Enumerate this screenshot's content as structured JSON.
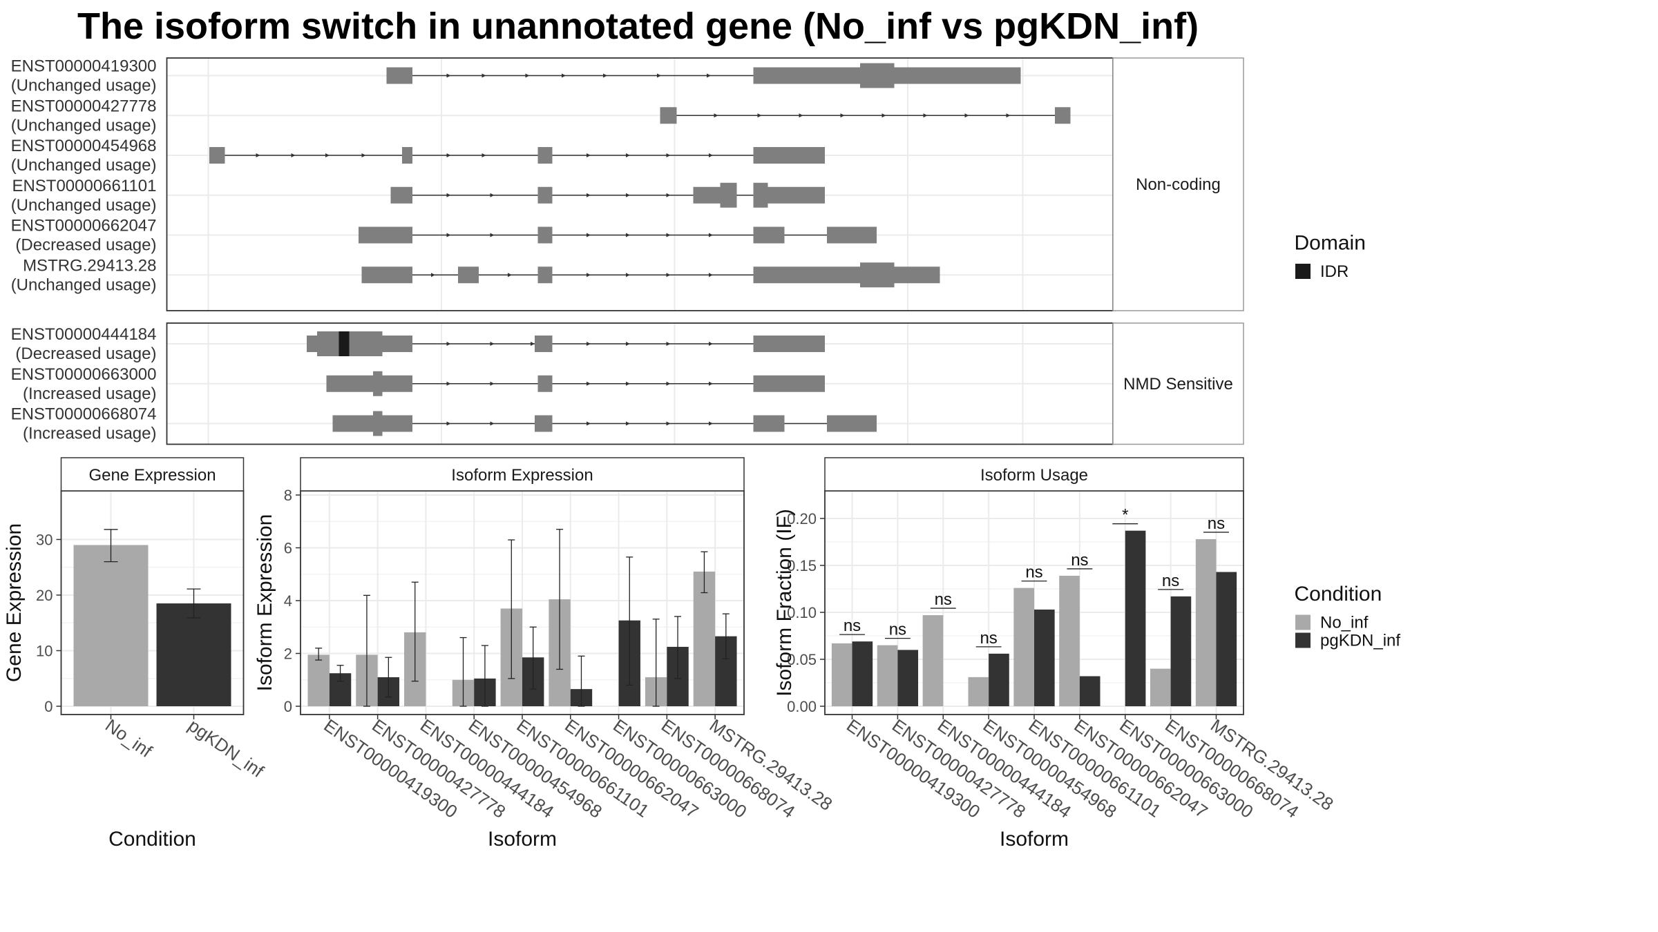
{
  "title": "The isoform switch in unannotated gene (No_inf vs pgKDN_inf)",
  "colors": {
    "no_inf": "#a9a9a9",
    "pgkdn_inf": "#333333",
    "exon": "#7f7f7f",
    "idr": "#1a1a1a",
    "grid": "#ebebeb",
    "panel_border": "#333333",
    "strip_border": "#999999"
  },
  "structure": {
    "groups": [
      {
        "label": "Non-coding",
        "isoforms": [
          {
            "id": "ENST00000419300",
            "usage": "(Unchanged usage)",
            "exons": [
              [
                373,
                398,
                "t"
              ],
              [
                727,
                830,
                "t"
              ],
              [
                830,
                863,
                "c"
              ],
              [
                863,
                985,
                "t"
              ]
            ],
            "intron": [
              398,
              727
            ],
            "arrows": [
              435,
              469,
              511,
              546,
              586,
              638,
              686
            ]
          },
          {
            "id": "ENST00000427778",
            "usage": "(Unchanged usage)",
            "exons": [
              [
                637,
                653,
                "t"
              ],
              [
                1018,
                1033,
                "t"
              ]
            ],
            "intron": [
              653,
              1018
            ],
            "arrows": [
              693,
              735,
              775,
              815,
              855,
              895,
              935,
              975
            ]
          },
          {
            "id": "ENST00000454968",
            "usage": "(Unchanged usage)",
            "exons": [
              [
                202,
                217,
                "t"
              ],
              [
                388,
                398,
                "t"
              ],
              [
                519,
                533,
                "t"
              ],
              [
                727,
                796,
                "t"
              ]
            ],
            "intron": [
              217,
              727
            ],
            "arrows": [
              251,
              285,
              318,
              353,
              435,
              469,
              570,
              608,
              647,
              688
            ]
          },
          {
            "id": "ENST00000661101",
            "usage": "(Unchanged usage)",
            "exons": [
              [
                377,
                398,
                "t"
              ],
              [
                519,
                533,
                "t"
              ],
              [
                669,
                695,
                "t"
              ],
              [
                695,
                711,
                "c"
              ],
              [
                727,
                741,
                "c"
              ],
              [
                741,
                796,
                "t"
              ]
            ],
            "intron": [
              398,
              727
            ],
            "arrows": [
              435,
              477,
              570,
              608,
              647
            ]
          },
          {
            "id": "ENST00000662047",
            "usage": "(Decreased usage)",
            "exons": [
              [
                346,
                398,
                "t"
              ],
              [
                519,
                533,
                "t"
              ],
              [
                727,
                757,
                "t"
              ],
              [
                798,
                846,
                "t"
              ]
            ],
            "intron": [
              398,
              798
            ],
            "arrows": [
              435,
              477,
              570,
              608,
              647,
              688
            ]
          },
          {
            "id": "MSTRG.29413.28",
            "usage": "(Unchanged usage)",
            "exons": [
              [
                349,
                398,
                "t"
              ],
              [
                442,
                462,
                "t"
              ],
              [
                519,
                533,
                "t"
              ],
              [
                727,
                830,
                "t"
              ],
              [
                830,
                863,
                "c"
              ],
              [
                863,
                907,
                "t"
              ]
            ],
            "intron": [
              398,
              727
            ],
            "arrows": [
              420,
              494,
              570,
              608,
              647,
              688
            ]
          }
        ]
      },
      {
        "label": "NMD Sensitive",
        "isoforms": [
          {
            "id": "ENST00000444184",
            "usage": "(Decreased usage)",
            "exons": [
              [
                296,
                306,
                "t"
              ],
              [
                306,
                360,
                "c"
              ],
              [
                360,
                369,
                "c"
              ],
              [
                369,
                398,
                "t"
              ],
              [
                516,
                533,
                "t"
              ],
              [
                727,
                796,
                "t"
              ]
            ],
            "intron": [
              398,
              727
            ],
            "arrows": [
              435,
              477,
              516,
              570,
              608,
              647,
              688
            ],
            "idr": [
              327,
              337
            ]
          },
          {
            "id": "ENST00000663000",
            "usage": "(Increased usage)",
            "exons": [
              [
                315,
                360,
                "t"
              ],
              [
                360,
                369,
                "c"
              ],
              [
                369,
                398,
                "t"
              ],
              [
                519,
                533,
                "t"
              ],
              [
                727,
                796,
                "t"
              ]
            ],
            "intron": [
              398,
              727
            ],
            "arrows": [
              435,
              477,
              570,
              608,
              647,
              688
            ]
          },
          {
            "id": "ENST00000668074",
            "usage": "(Increased usage)",
            "exons": [
              [
                321,
                360,
                "t"
              ],
              [
                360,
                369,
                "c"
              ],
              [
                369,
                398,
                "t"
              ],
              [
                516,
                533,
                "t"
              ],
              [
                727,
                757,
                "t"
              ],
              [
                798,
                846,
                "t"
              ]
            ],
            "intron": [
              398,
              798
            ],
            "arrows": [
              435,
              477,
              570,
              608,
              647,
              688
            ]
          }
        ]
      }
    ]
  },
  "legend_domain": {
    "title": "Domain",
    "entries": [
      {
        "label": "IDR",
        "color": "#1a1a1a"
      }
    ]
  },
  "legend_condition": {
    "title": "Condition",
    "entries": [
      {
        "label": "No_inf",
        "color": "#a9a9a9"
      },
      {
        "label": "pgKDN_inf",
        "color": "#333333"
      }
    ]
  },
  "chart_data": [
    {
      "type": "bar",
      "title": "Gene Expression",
      "xlabel": "Condition",
      "ylabel": "Gene Expression",
      "ylim": [
        0,
        38
      ],
      "yticks": [
        0,
        10,
        20,
        30
      ],
      "categories": [
        "No_inf",
        "pgKDN_inf"
      ],
      "values": [
        29.0,
        18.5
      ],
      "error": [
        [
          26.0,
          31.8
        ],
        [
          15.9,
          21.1
        ]
      ],
      "colors": [
        "#a9a9a9",
        "#333333"
      ]
    },
    {
      "type": "bar",
      "title": "Isoform Expression",
      "xlabel": "Isoform",
      "ylabel": "Isoform Expression",
      "ylim": [
        0,
        8
      ],
      "yticks": [
        0,
        2,
        4,
        6,
        8
      ],
      "categories": [
        "ENST00000419300",
        "ENST00000427778",
        "ENST00000444184",
        "ENST00000454968",
        "ENST00000661101",
        "ENST00000662047",
        "ENST00000663000",
        "ENST00000668074",
        "MSTRG.29413.28"
      ],
      "series": [
        {
          "name": "No_inf",
          "values": [
            1.95,
            1.95,
            2.8,
            1.0,
            3.7,
            4.05,
            0.0,
            1.1,
            5.1
          ],
          "error": [
            [
              1.75,
              2.2
            ],
            [
              0.0,
              4.2
            ],
            [
              0.95,
              4.7
            ],
            [
              0.0,
              2.6
            ],
            [
              1.05,
              6.3
            ],
            [
              1.4,
              6.7
            ],
            null,
            [
              0.0,
              3.3
            ],
            [
              4.3,
              5.85
            ]
          ]
        },
        {
          "name": "pgKDN_inf",
          "values": [
            1.25,
            1.1,
            0.0,
            1.05,
            1.85,
            0.65,
            3.25,
            2.25,
            2.65
          ],
          "error": [
            [
              0.95,
              1.55
            ],
            [
              0.35,
              1.85
            ],
            null,
            [
              0.0,
              2.3
            ],
            [
              0.65,
              3.0
            ],
            [
              0.0,
              1.9
            ],
            [
              0.8,
              5.65
            ],
            [
              1.05,
              3.4
            ],
            [
              1.8,
              3.5
            ]
          ]
        }
      ]
    },
    {
      "type": "bar",
      "title": "Isoform Usage",
      "xlabel": "Isoform",
      "ylabel": "Isoform Fraction (IF)",
      "ylim": [
        0,
        0.225
      ],
      "yticks": [
        0.0,
        0.05,
        0.1,
        0.15,
        0.2
      ],
      "ytick_labels": [
        "0.00",
        "0.05",
        "0.10",
        "0.15",
        "0.20"
      ],
      "categories": [
        "ENST00000419300",
        "ENST00000427778",
        "ENST00000444184",
        "ENST00000454968",
        "ENST00000661101",
        "ENST00000662047",
        "ENST00000663000",
        "ENST00000668074",
        "MSTRG.29413.28"
      ],
      "series": [
        {
          "name": "No_inf",
          "values": [
            0.067,
            0.065,
            0.097,
            0.031,
            0.126,
            0.139,
            0.0,
            0.04,
            0.178
          ]
        },
        {
          "name": "pgKDN_inf",
          "values": [
            0.069,
            0.06,
            0.0,
            0.056,
            0.103,
            0.032,
            0.187,
            0.117,
            0.143
          ]
        }
      ],
      "significance": [
        "ns",
        "ns",
        "ns",
        "ns",
        "ns",
        "ns",
        "*",
        "ns",
        "ns"
      ]
    }
  ]
}
